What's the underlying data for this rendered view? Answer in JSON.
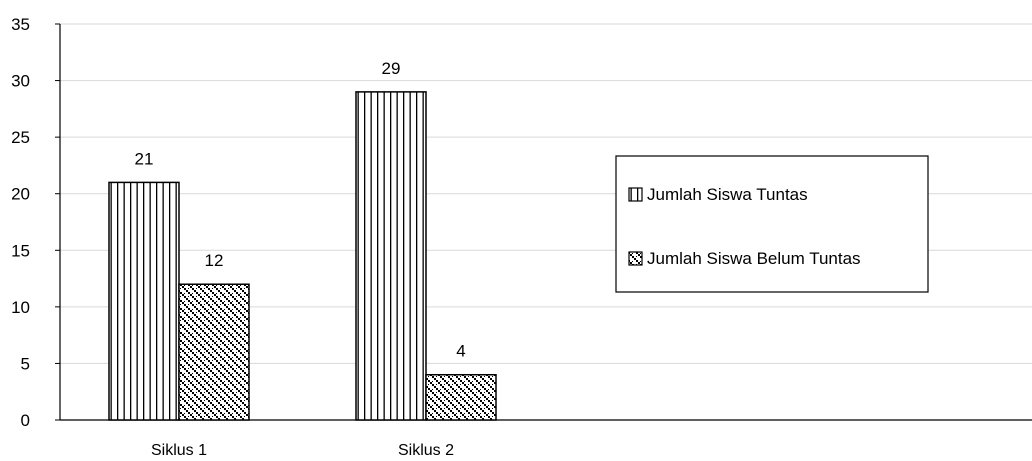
{
  "chart_data": {
    "type": "bar",
    "categories": [
      "Siklus 1",
      "Siklus 2"
    ],
    "series": [
      {
        "name": "Jumlah Siswa Tuntas",
        "values": [
          21,
          29
        ],
        "pattern": "vertical-stripes"
      },
      {
        "name": "Jumlah Siswa Belum Tuntas",
        "values": [
          12,
          4
        ],
        "pattern": "checker-dots"
      }
    ],
    "ylim": [
      0,
      35
    ],
    "yticks": [
      0,
      5,
      10,
      15,
      20,
      25,
      30,
      35
    ],
    "grid": true,
    "legend": "right",
    "title": "",
    "xlabel": "",
    "ylabel": ""
  }
}
